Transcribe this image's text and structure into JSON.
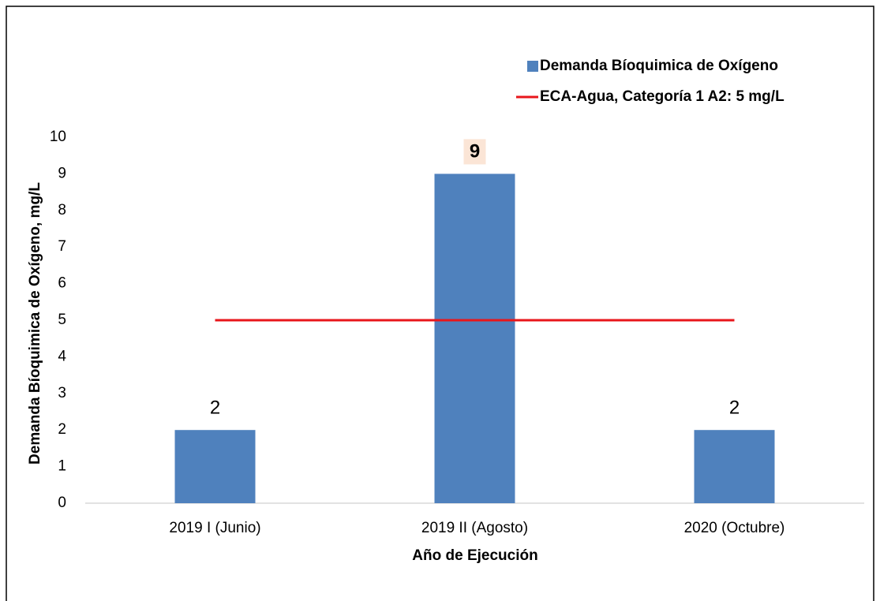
{
  "chart_data": {
    "type": "bar",
    "categories": [
      "2019 I (Junio)",
      "2019 II (Agosto)",
      "2020 (Octubre)"
    ],
    "series": [
      {
        "name": "Demanda Bíoquimica de Oxígeno",
        "type": "bar",
        "color": "#4f81bd",
        "values": [
          2,
          9,
          2
        ],
        "label_highlight": 1
      },
      {
        "name": "ECA-Agua, Categoría 1 A2: 5 mg/L",
        "type": "line",
        "color": "#e8161b",
        "values": [
          5,
          5,
          5
        ]
      }
    ],
    "x_label": "Año de Ejecución",
    "y_label": "Demanda Bíoquimica de Oxígeno, mg/L",
    "ylim": [
      0,
      10
    ],
    "yticks": [
      0,
      1,
      2,
      3,
      4,
      5,
      6,
      7,
      8,
      9,
      10
    ],
    "grid": false,
    "legend": "top-right"
  }
}
